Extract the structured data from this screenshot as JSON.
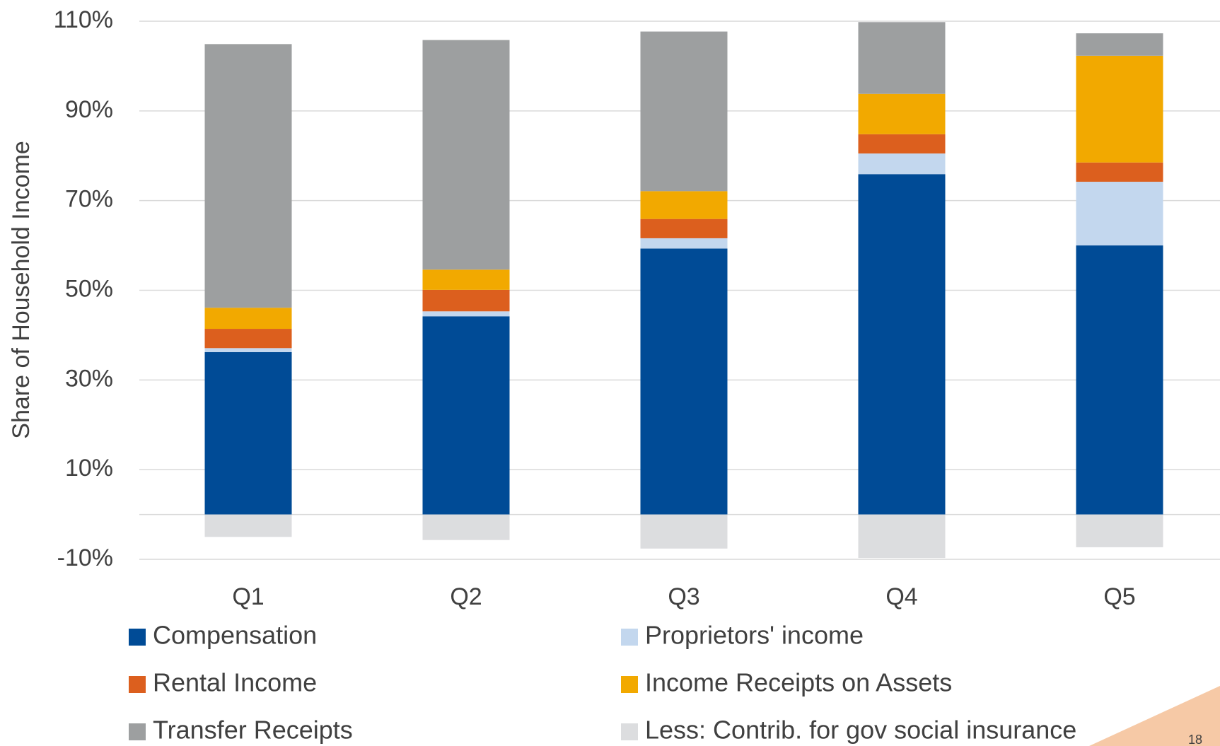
{
  "chart_data": {
    "type": "stacked-bar",
    "y_label": "Share of Household Income",
    "categories": [
      "Q1",
      "Q2",
      "Q3",
      "Q4",
      "Q5"
    ],
    "series": [
      {
        "name": "Compensation",
        "color": "#004b96",
        "values": [
          36.2,
          44.2,
          59.3,
          75.9,
          60.0
        ]
      },
      {
        "name": "Proprietors' income",
        "color": "#c3d7ee",
        "values": [
          0.9,
          1.1,
          2.3,
          4.6,
          14.2
        ]
      },
      {
        "name": "Rental Income",
        "color": "#dc5f1e",
        "values": [
          4.3,
          4.8,
          4.3,
          4.3,
          4.3
        ]
      },
      {
        "name": "Income Receipts on Assets",
        "color": "#f2a900",
        "values": [
          4.7,
          4.5,
          6.2,
          9.0,
          23.8
        ]
      },
      {
        "name": "Transfer Receipts",
        "color": "#9d9fa0",
        "values": [
          58.8,
          51.2,
          35.6,
          16.0,
          5.0
        ]
      },
      {
        "name": "Less: Contrib. for gov social insurance",
        "color": "#dcdddf",
        "values": [
          -5.0,
          -5.7,
          -7.6,
          -9.7,
          -7.3
        ]
      }
    ],
    "ylim": [
      -10,
      110
    ],
    "yticks": [
      {
        "value": -10,
        "label": "-10%"
      },
      {
        "value": 10,
        "label": "10%"
      },
      {
        "value": 30,
        "label": "30%"
      },
      {
        "value": 50,
        "label": "50%"
      },
      {
        "value": 70,
        "label": "70%"
      },
      {
        "value": 90,
        "label": "90%"
      },
      {
        "value": 110,
        "label": "110%"
      }
    ],
    "grid": true,
    "page_number": "18"
  }
}
